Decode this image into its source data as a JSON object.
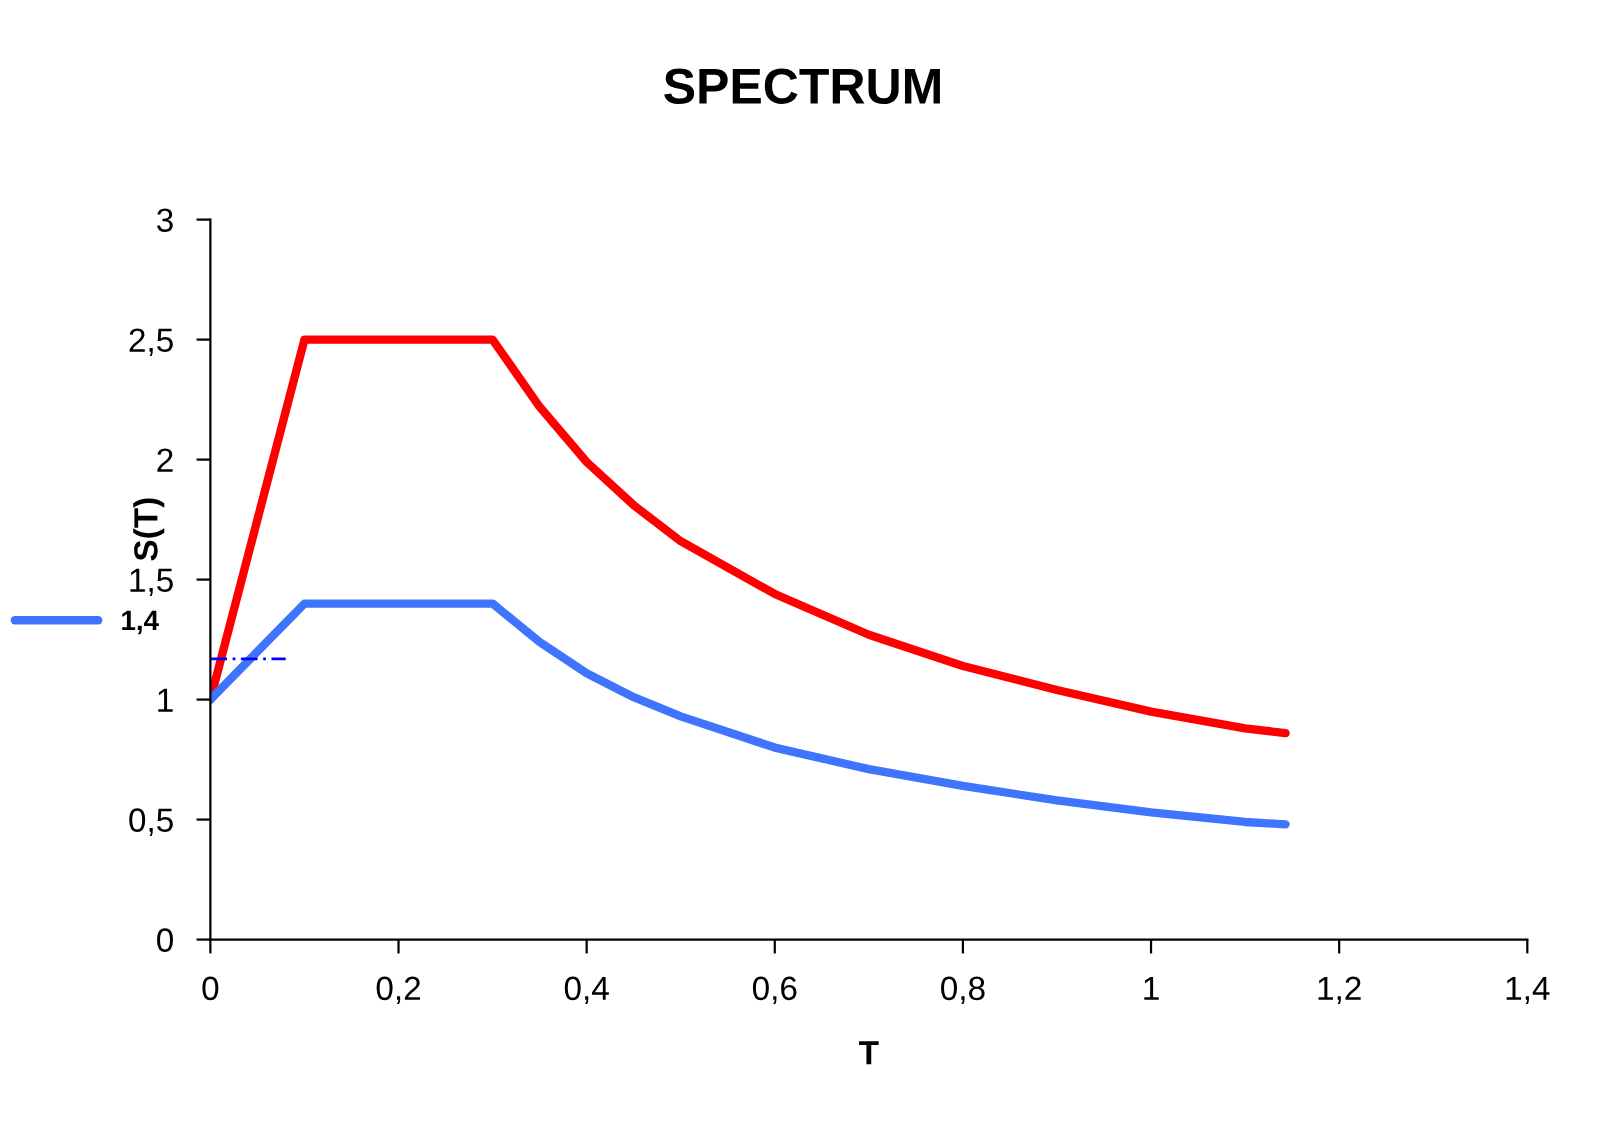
{
  "chart_data": {
    "type": "line",
    "title": "SPECTRUM",
    "xlabel": "T",
    "ylabel": "S(T)",
    "series": [
      {
        "color": "#ff0000",
        "x": [
          0,
          0.1,
          0.3,
          0.35,
          0.4,
          0.45,
          0.5,
          0.6,
          0.7,
          0.8,
          0.9,
          1.0,
          1.1,
          1.143
        ],
        "values": [
          1,
          2.5,
          2.5,
          2.22,
          1.99,
          1.81,
          1.66,
          1.44,
          1.27,
          1.14,
          1.04,
          0.95,
          0.88,
          0.86
        ]
      },
      {
        "name": "1,4",
        "color": "#3f74ff",
        "x": [
          0,
          0.1,
          0.3,
          0.35,
          0.4,
          0.45,
          0.5,
          0.6,
          0.7,
          0.8,
          0.9,
          1.0,
          1.1,
          1.143
        ],
        "values": [
          1,
          1.4,
          1.4,
          1.24,
          1.11,
          1.01,
          0.93,
          0.8,
          0.71,
          0.64,
          0.58,
          0.53,
          0.49,
          0.48
        ]
      },
      {
        "color": "#0000ff",
        "line_style": "dashed",
        "x": [
          0,
          0.08
        ],
        "values": [
          1.17,
          1.17
        ]
      }
    ],
    "xlim": [
      0,
      1.4
    ],
    "xticks": [
      {
        "value": 0,
        "label": "0"
      },
      {
        "value": 0.2,
        "label": "0,2"
      },
      {
        "value": 0.4,
        "label": "0,4"
      },
      {
        "value": 0.6,
        "label": "0,6"
      },
      {
        "value": 0.8,
        "label": "0,8"
      },
      {
        "value": 1,
        "label": "1"
      },
      {
        "value": 1.2,
        "label": "1,2"
      },
      {
        "value": 1.4,
        "label": "1,4"
      }
    ],
    "ylim": [
      0,
      3
    ],
    "yticks": [
      {
        "value": 0,
        "label": "0"
      },
      {
        "value": 0.5,
        "label": "0,5"
      },
      {
        "value": 1,
        "label": "1"
      },
      {
        "value": 1.5,
        "label": "1,5"
      },
      {
        "value": 2,
        "label": "2"
      },
      {
        "value": 2.5,
        "label": "2,5"
      },
      {
        "value": 3,
        "label": "3"
      }
    ],
    "grid": false,
    "legend": "left",
    "marker": "none"
  }
}
